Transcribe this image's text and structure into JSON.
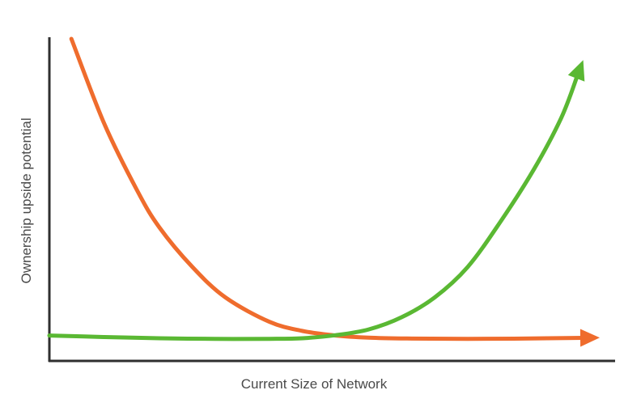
{
  "chart_data": {
    "type": "line",
    "title": "",
    "xlabel": "Current Size of Network",
    "ylabel": "Ownership upside potential",
    "xlim": [
      0,
      100
    ],
    "ylim": [
      0,
      100
    ],
    "grid": false,
    "legend": "none",
    "series": [
      {
        "color": "#ef6c2d",
        "arrow_end": true,
        "x": [
          4,
          10,
          16,
          20,
          26,
          32,
          40,
          46,
          52,
          58,
          66,
          76,
          86,
          100
        ],
        "y": [
          100,
          72,
          50,
          38,
          25,
          15,
          7,
          4,
          2.5,
          1.8,
          1.5,
          1.4,
          1.5,
          1.8
        ]
      },
      {
        "color": "#5ab833",
        "arrow_end": true,
        "x": [
          0,
          10,
          20,
          30,
          40,
          46,
          52,
          58,
          64,
          70,
          76,
          82,
          88,
          93,
          97
        ],
        "y": [
          2.5,
          2.0,
          1.6,
          1.4,
          1.4,
          1.6,
          2.6,
          4.5,
          8.5,
          15,
          25,
          40,
          57,
          74,
          93
        ]
      }
    ]
  }
}
